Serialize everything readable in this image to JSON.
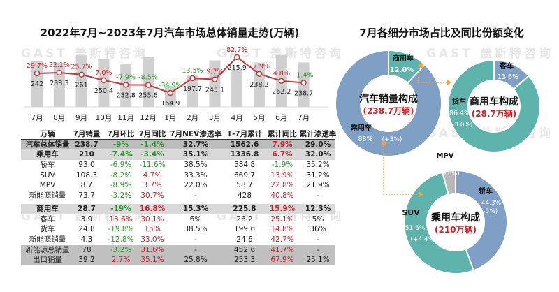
{
  "left_title": "2022年7月~2023年7月汽车市场总体销量走势(万辆)",
  "right_title": "7月各细分市场占比及同比份额变化",
  "watermark": "GAST 盖斯特咨询",
  "colors": {
    "bar": "#d0d0d0",
    "line": "#c0393b",
    "red": "#d0242b",
    "green": "#2a9a2a",
    "blue": "#7f9fc4",
    "teal": "#5fb3ad",
    "gray": "#b8b8b8",
    "orange": "#f4a340"
  },
  "chart_data": [
    {
      "type": "bar+line",
      "title": "2022年7月~2023年7月汽车市场总体销量走势(万辆)",
      "categories": [
        "7月",
        "8月",
        "9月",
        "10月",
        "11月",
        "12月",
        "1月",
        "2月",
        "3月",
        "4月",
        "5月",
        "6月",
        "7月"
      ],
      "series": [
        {
          "name": "销量(万辆)",
          "type": "bar",
          "values": [
            242,
            238.3,
            261,
            250.4,
            232.8,
            255.6,
            164.9,
            197.7,
            245.1,
            215.9,
            238.2,
            262.2,
            238.7
          ],
          "labels": [
            "242",
            "238.3",
            "261",
            "250.4",
            "232.8",
            "255.6",
            "164.9",
            "197.7",
            "245.1",
            "215.9",
            "238.2",
            "262.2",
            "238.7"
          ]
        },
        {
          "name": "同比",
          "type": "line",
          "values": [
            29.7,
            32.1,
            25.7,
            7.0,
            -7.9,
            -8.5,
            -34.9,
            13.5,
            9.7,
            82.7,
            27.9,
            4.8,
            -1.4
          ],
          "labels": [
            "29.7%",
            "32.1%",
            "25.7%",
            "7.0%",
            "-7.9%",
            "-8.5%",
            "-34.9%",
            "13.5%",
            "9.7%",
            "82.7%",
            "27.9%",
            "4.8%",
            "-1.4%"
          ]
        }
      ]
    },
    {
      "type": "pie",
      "title": "汽车销量构成",
      "subtitle": "(238.7万辆)",
      "slices": [
        {
          "name": "商用车",
          "value": 12.0,
          "label": "12.0%"
        },
        {
          "name": "乘用车",
          "value": 88,
          "label": "88%",
          "change": "(+3%)"
        }
      ]
    },
    {
      "type": "pie",
      "title": "商用车构成",
      "subtitle": "(28.7万辆)",
      "slices": [
        {
          "name": "客车",
          "value": 13.6,
          "label": "13.6%"
        },
        {
          "name": "货车",
          "value": 86.4,
          "label": "86.4%",
          "change": "(-3.0%)"
        }
      ]
    },
    {
      "type": "pie",
      "title": "乘用车构成",
      "subtitle": "(210万辆)",
      "slices": [
        {
          "name": "轿车",
          "value": 44.3,
          "label": "44.3%",
          "change": "(-5%)"
        },
        {
          "name": "SUV",
          "value": 51.6,
          "label": "51.6%",
          "change": "(+4.4%)"
        },
        {
          "name": "MPV",
          "value": 4.1,
          "label": "4.1%",
          "change": "(+0.6%)"
        }
      ]
    }
  ],
  "table": {
    "headers": [
      "万辆",
      "7月销量",
      "7月环比",
      "7月同比",
      "7月NEV渗透率",
      "1-7月累计",
      "累计同比",
      "累计渗透率"
    ],
    "rows": [
      {
        "style": "bg1 bold",
        "cells": [
          "汽车总体销量",
          "238.7",
          "-9%",
          "-1.4%",
          "32.7%",
          "1562.6",
          "7.9%",
          "29.0%"
        ]
      },
      {
        "style": "bg2 bold",
        "cells": [
          "乘用车",
          "210",
          "-7.4%",
          "-3.4%",
          "35.1%",
          "1336.8",
          "6.7%",
          "32.0%"
        ]
      },
      {
        "style": "",
        "cells": [
          "轿车",
          "93.0",
          "-6.9%",
          "-11.6%",
          "38.5%",
          "584.8",
          "-1.9%",
          "35.2%"
        ]
      },
      {
        "style": "",
        "cells": [
          "SUV",
          "108.3",
          "-8.2%",
          "4.7%",
          "33.3%",
          "669.7",
          "13.9%",
          "31.2%"
        ]
      },
      {
        "style": "",
        "cells": [
          "MPV",
          "8.7",
          "-8.9%",
          "3.7%",
          "22.0%",
          "58.7",
          "22.8%",
          "21.9%"
        ]
      },
      {
        "style": "",
        "cells": [
          "新能源销量",
          "73.7",
          "-3.2%",
          "30.7%",
          "-",
          "428",
          "40.8%",
          "-"
        ]
      },
      {
        "style": "bg2 bold",
        "cells": [
          "商用车",
          "28.7",
          "-19%",
          "16.8%",
          "15.3%",
          "225.8",
          "15.9%",
          "12.3%"
        ]
      },
      {
        "style": "",
        "cells": [
          "客车",
          "3.9",
          "13.6%",
          "30.1%",
          "6%",
          "26.2",
          "25.1%",
          "5%"
        ]
      },
      {
        "style": "",
        "cells": [
          "货车",
          "24.8",
          "-19.8%",
          "15%",
          "38.5%",
          "199.6",
          "14.8%",
          "36%"
        ]
      },
      {
        "style": "",
        "cells": [
          "新能源销量",
          "4.3",
          "-12.8%",
          "33.0%",
          "-",
          "24.6",
          "42.7%",
          "-"
        ]
      },
      {
        "style": "bg3",
        "cells": [
          "新能源总销量",
          "78",
          "-3.2%",
          "31.6%",
          "-",
          "452.6",
          "41.7%",
          "-"
        ]
      },
      {
        "style": "bg3",
        "cells": [
          "出口销量",
          "39.2",
          "2.7%",
          "35.1%",
          "25.8%",
          "253.3",
          "67.9%",
          "25.1%"
        ]
      }
    ]
  }
}
